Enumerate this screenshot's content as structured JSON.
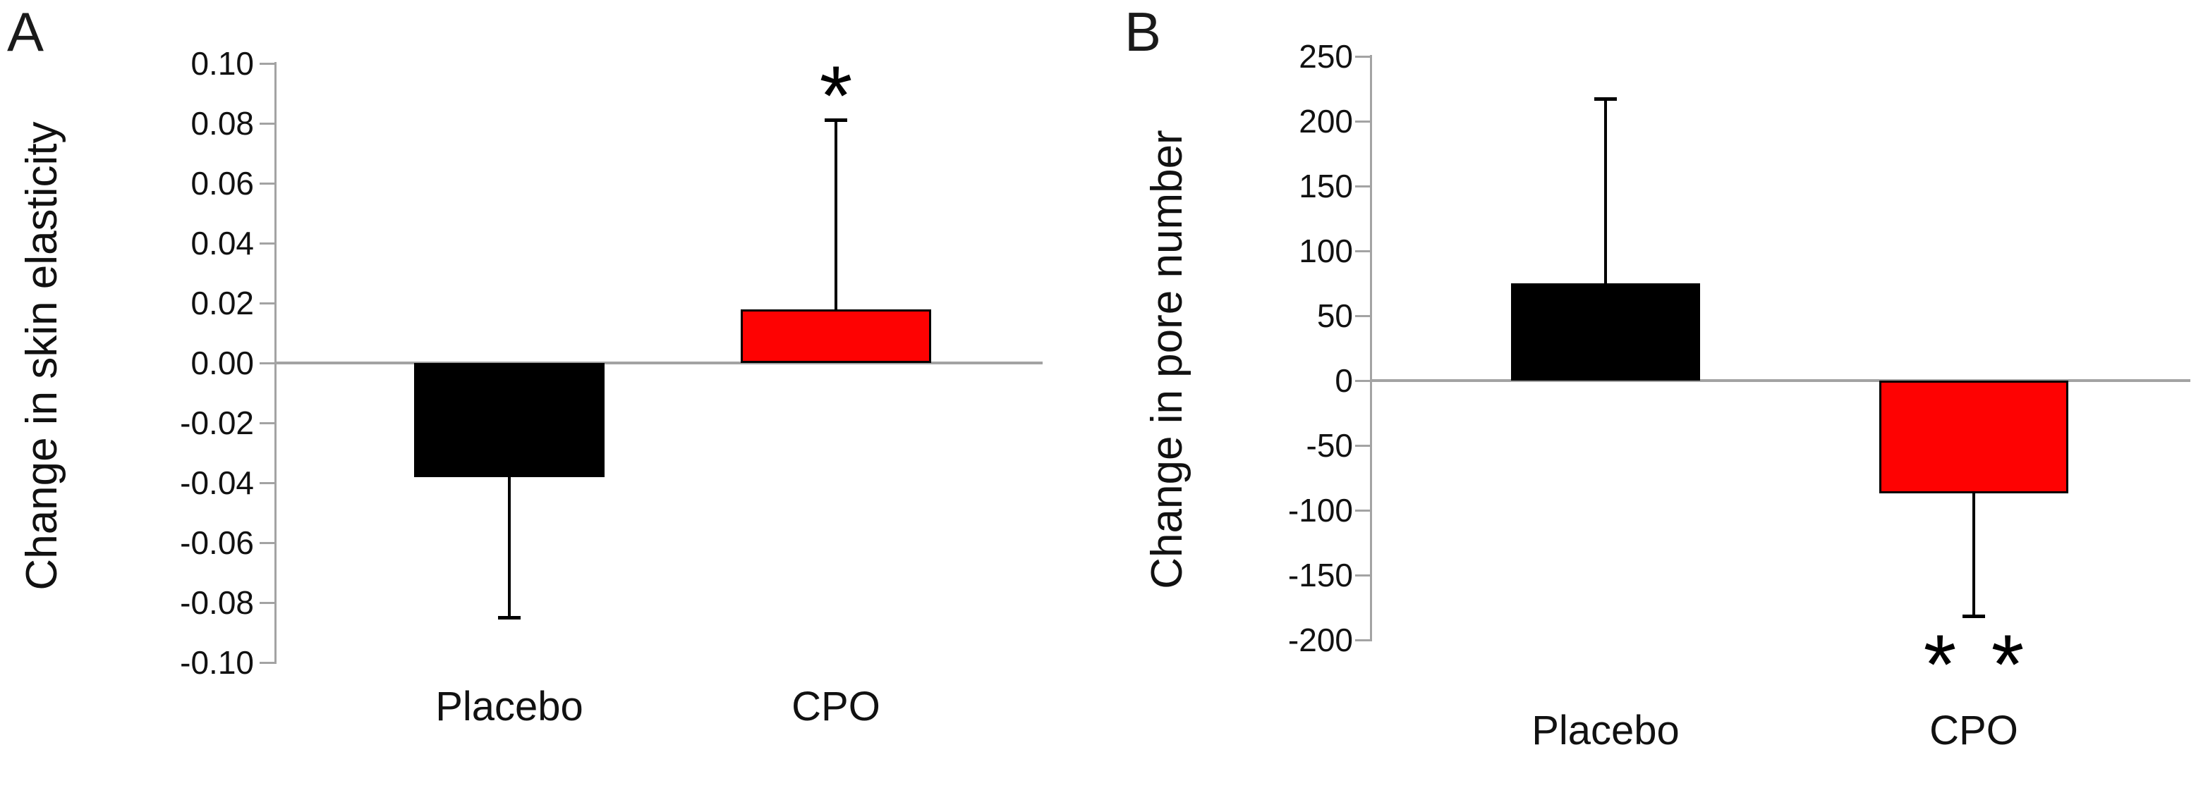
{
  "figure_title": "",
  "colors": {
    "bar_black": "#000000",
    "bar_red": "#fe0202",
    "axis_gray": "#a3a3a3",
    "text": "#111111",
    "background": "#ffffff"
  },
  "chart_data": [
    {
      "type": "bar",
      "panel_letter": "A",
      "title": "",
      "xlabel": "",
      "ylabel": "Change in skin elasticity",
      "categories": [
        "Placebo",
        "CPO"
      ],
      "values": [
        -0.038,
        0.018
      ],
      "errors_to": [
        -0.085,
        0.081
      ],
      "bar_colors": [
        "#000000",
        "#fe0202"
      ],
      "significance": [
        null,
        "*"
      ],
      "ylim": [
        -0.1,
        0.1
      ],
      "ytick_step": 0.02,
      "grid": "zero-line-only",
      "legend": "none",
      "yticks": [
        {
          "v": 0.1,
          "label": "0.10"
        },
        {
          "v": 0.08,
          "label": "0.08"
        },
        {
          "v": 0.06,
          "label": "0.06"
        },
        {
          "v": 0.04,
          "label": "0.04"
        },
        {
          "v": 0.02,
          "label": "0.02"
        },
        {
          "v": 0.0,
          "label": "0.00"
        },
        {
          "v": -0.02,
          "label": "-0.02"
        },
        {
          "v": -0.04,
          "label": "-0.04"
        },
        {
          "v": -0.06,
          "label": "-0.06"
        },
        {
          "v": -0.08,
          "label": "-0.08"
        },
        {
          "v": -0.1,
          "label": "-0.10"
        }
      ]
    },
    {
      "type": "bar",
      "panel_letter": "B",
      "title": "",
      "xlabel": "",
      "ylabel": "Change in pore number",
      "categories": [
        "Placebo",
        "CPO"
      ],
      "values": [
        75,
        -87
      ],
      "errors_to": [
        217,
        -182
      ],
      "bar_colors": [
        "#000000",
        "#fe0202"
      ],
      "significance": [
        null,
        "* *"
      ],
      "ylim": [
        -200,
        250
      ],
      "ytick_step": 50,
      "grid": "zero-line-only",
      "legend": "none",
      "yticks": [
        {
          "v": 250,
          "label": "250"
        },
        {
          "v": 200,
          "label": "200"
        },
        {
          "v": 150,
          "label": "150"
        },
        {
          "v": 100,
          "label": "100"
        },
        {
          "v": 50,
          "label": "50"
        },
        {
          "v": 0,
          "label": "0"
        },
        {
          "v": -50,
          "label": "-50"
        },
        {
          "v": -100,
          "label": "-100"
        },
        {
          "v": -150,
          "label": "-150"
        },
        {
          "v": -200,
          "label": "-200"
        }
      ]
    }
  ]
}
